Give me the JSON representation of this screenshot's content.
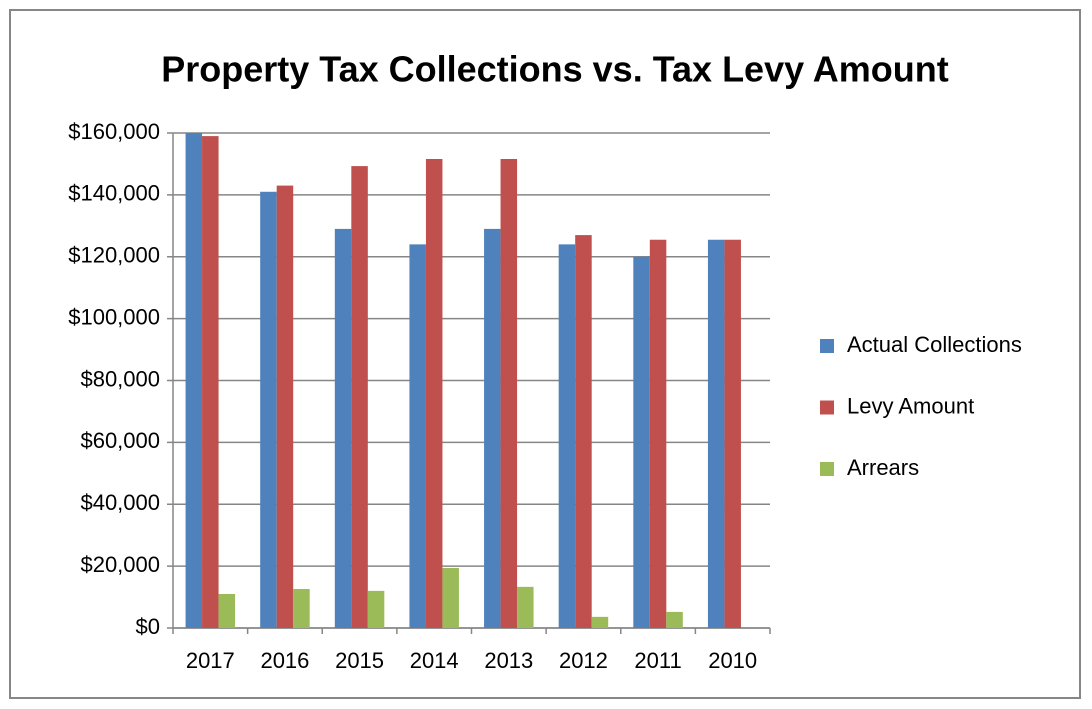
{
  "chart_data": {
    "type": "bar",
    "title": "Property Tax Collections vs. Tax Levy Amount",
    "categories": [
      "2017",
      "2016",
      "2015",
      "2014",
      "2013",
      "2012",
      "2011",
      "2010"
    ],
    "series": [
      {
        "name": "Actual Collections",
        "color": "#4f81bd",
        "values": [
          160000,
          141000,
          129000,
          124000,
          129000,
          124000,
          120000,
          125500
        ]
      },
      {
        "name": "Levy Amount",
        "color": "#c0504d",
        "values": [
          159000,
          143000,
          149300,
          151600,
          151600,
          127000,
          125500,
          125500
        ]
      },
      {
        "name": "Arrears",
        "color": "#9bbb59",
        "values": [
          11000,
          12600,
          12000,
          19400,
          13300,
          3600,
          5200,
          0
        ]
      }
    ],
    "ylim": [
      0,
      160000
    ],
    "yticks": [
      {
        "value": 0,
        "label": "$0"
      },
      {
        "value": 20000,
        "label": "$20,000"
      },
      {
        "value": 40000,
        "label": "$40,000"
      },
      {
        "value": 60000,
        "label": "$60,000"
      },
      {
        "value": 80000,
        "label": "$80,000"
      },
      {
        "value": 100000,
        "label": "$100,000"
      },
      {
        "value": 120000,
        "label": "$120,000"
      },
      {
        "value": 140000,
        "label": "$140,000"
      },
      {
        "value": 160000,
        "label": "$160,000"
      }
    ],
    "grid": true,
    "legend": "right"
  }
}
